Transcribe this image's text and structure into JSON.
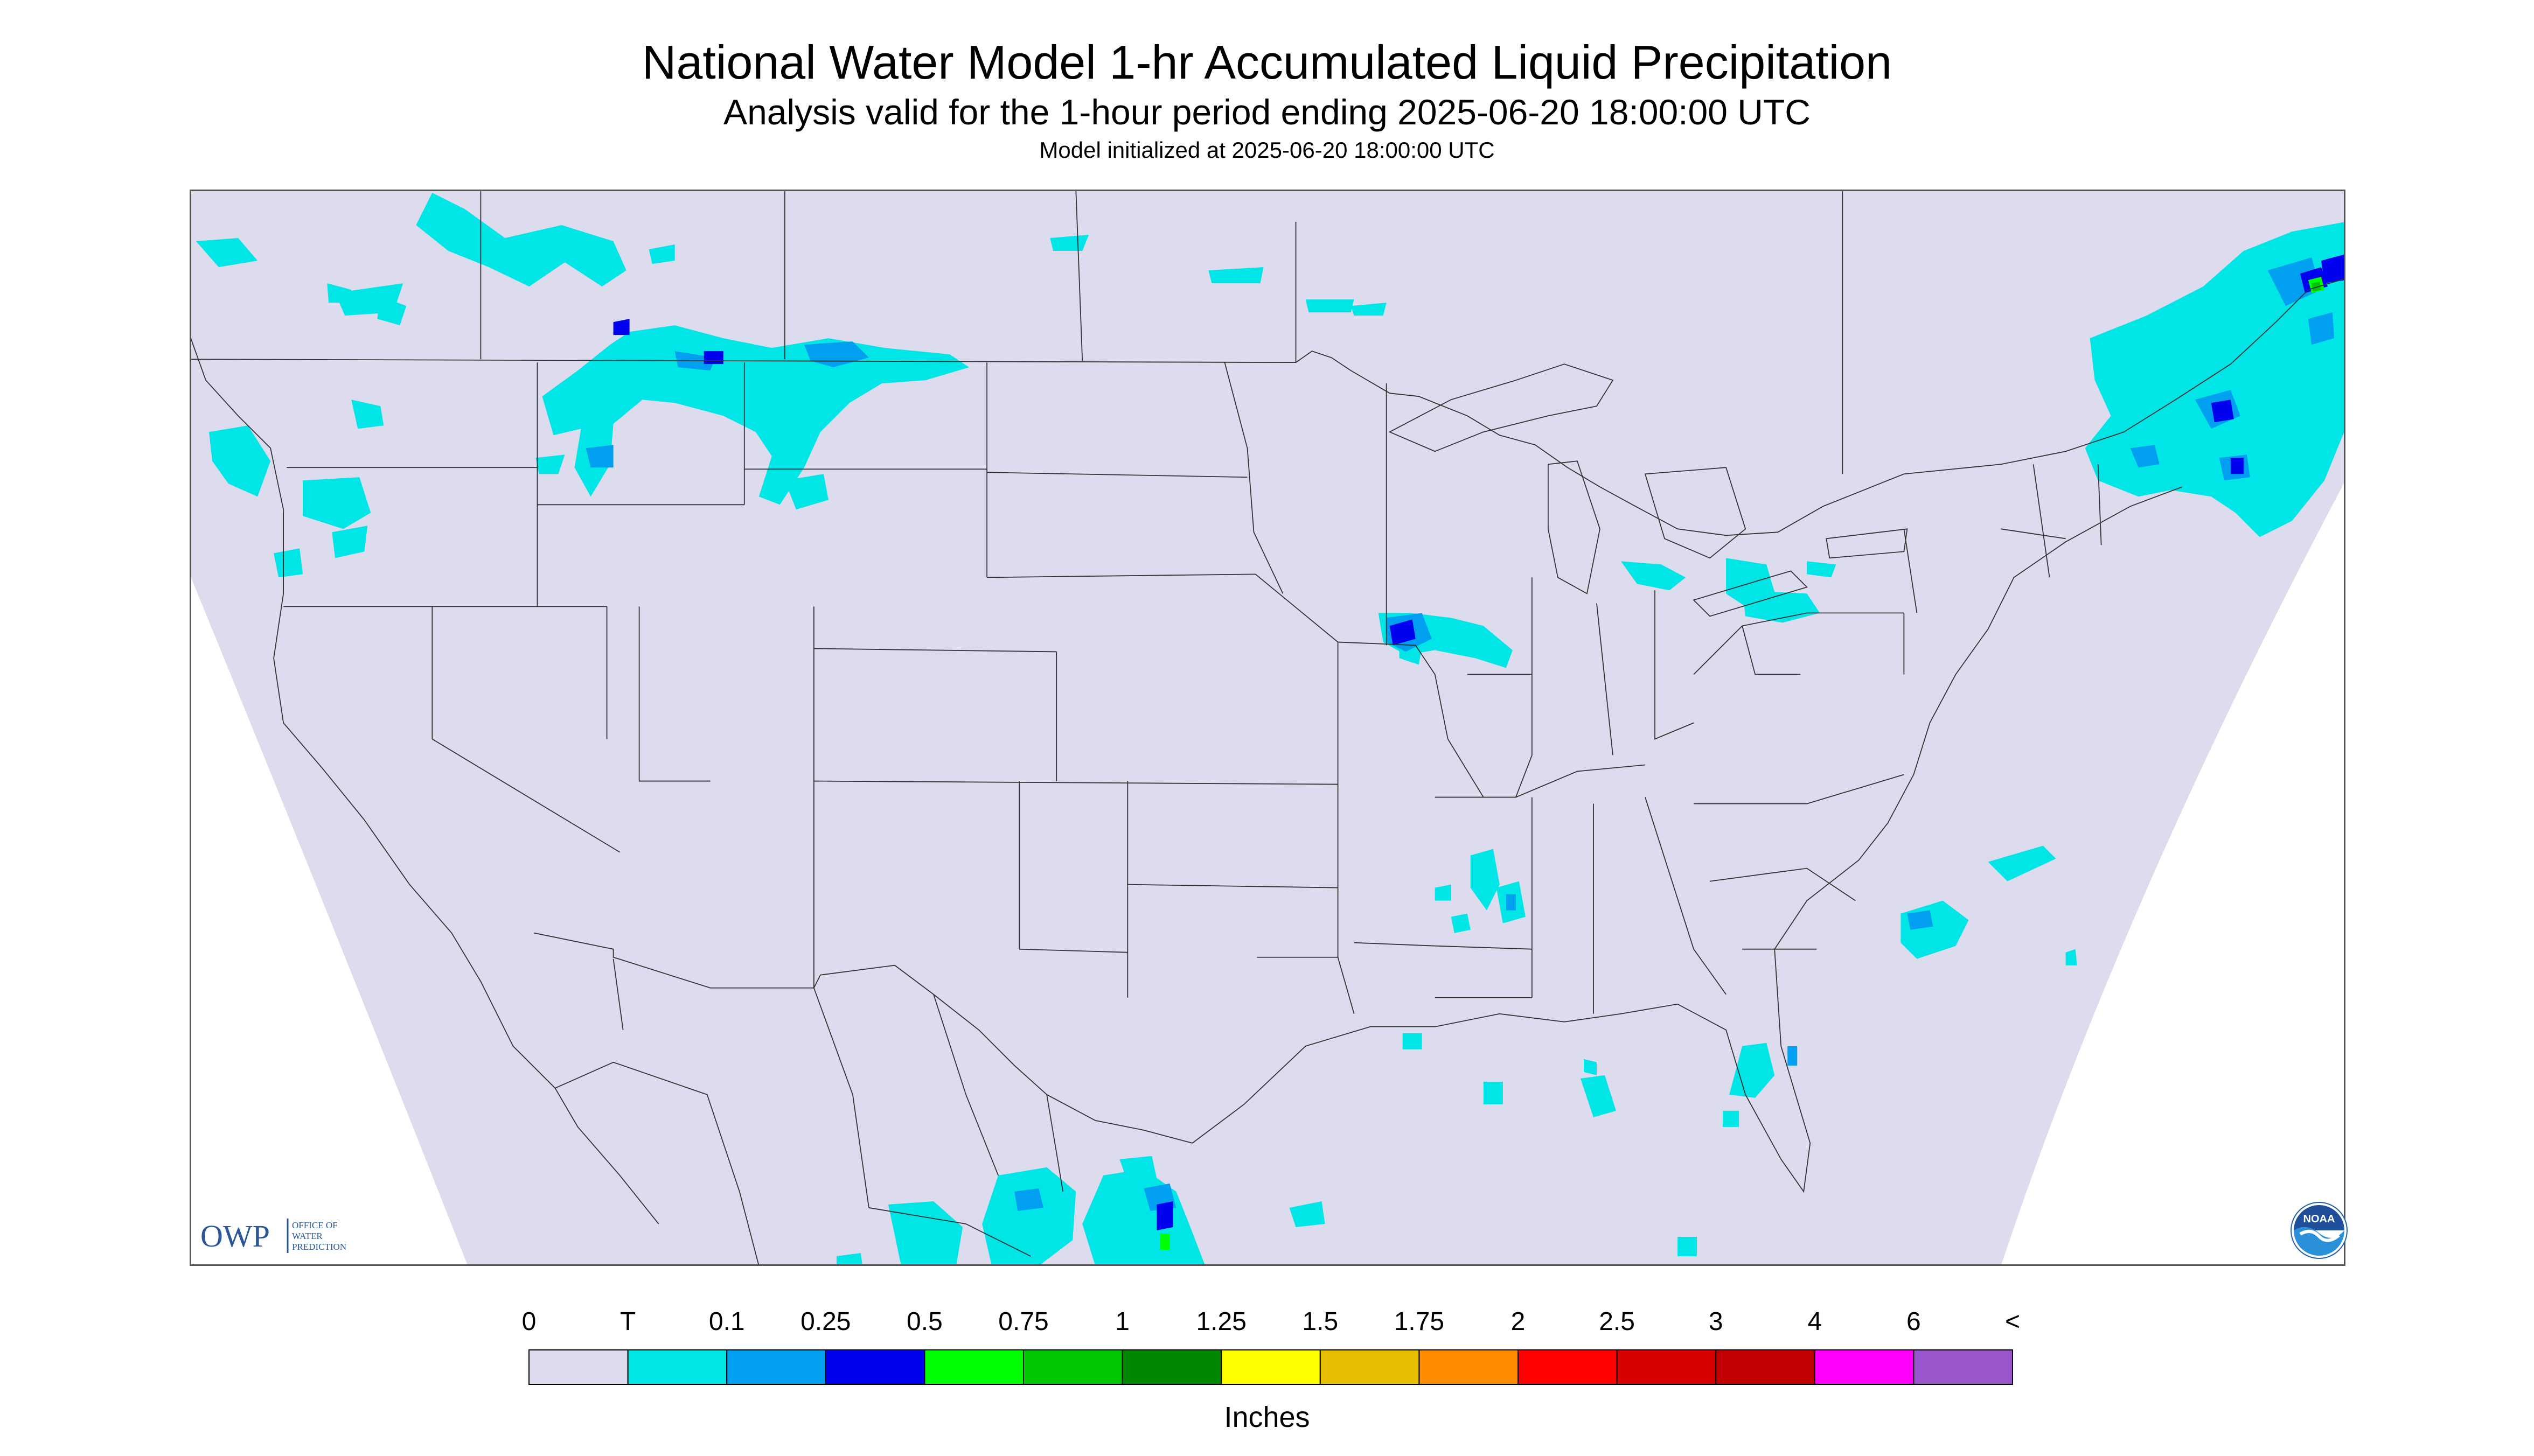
{
  "header": {
    "title": "National Water Model 1-hr Accumulated Liquid Precipitation",
    "subtitle": "Analysis valid for the 1-hour period ending 2025-06-20 18:00:00 UTC",
    "init": "Model initialized at 2025-06-20 18:00:00 UTC"
  },
  "colors": {
    "background": "#dcdcee",
    "outside": "#ffffff",
    "boundary": "#333333",
    "precip": {
      "trace": "#00e5e5",
      "p01": "#009fef",
      "p025": "#0000f0",
      "p05": "#00ff00",
      "p075": "#00c800",
      "p1": "#008800"
    }
  },
  "legend": {
    "labels": [
      "0",
      "T",
      "0.1",
      "0.25",
      "0.5",
      "0.75",
      "1",
      "1.25",
      "1.5",
      "1.75",
      "2",
      "2.5",
      "3",
      "4",
      "6",
      "<"
    ],
    "colors": [
      "#dcdcee",
      "#00e5e5",
      "#009fef",
      "#0000f0",
      "#00ff00",
      "#00c800",
      "#008800",
      "#ffff00",
      "#e5bf00",
      "#ff8c00",
      "#ff0000",
      "#d80000",
      "#c00000",
      "#ff00ff",
      "#9955cc"
    ],
    "units": "Inches"
  },
  "logos": {
    "owp_acronym": "OWP",
    "owp_name": [
      "OFFICE OF",
      "WATER",
      "PREDICTION"
    ],
    "noaa": "NOAA"
  }
}
